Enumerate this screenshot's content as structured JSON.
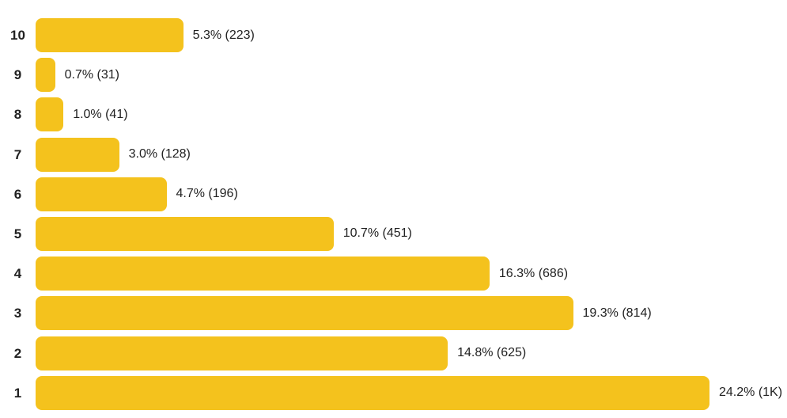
{
  "chart_data": {
    "type": "bar",
    "orientation": "horizontal",
    "title": "",
    "xlabel": "",
    "ylabel": "",
    "categories": [
      "10",
      "9",
      "8",
      "7",
      "6",
      "5",
      "4",
      "3",
      "2",
      "1"
    ],
    "values": [
      5.3,
      0.7,
      1.0,
      3.0,
      4.7,
      10.7,
      16.3,
      19.3,
      14.8,
      24.2
    ],
    "counts": [
      "223",
      "31",
      "41",
      "128",
      "196",
      "451",
      "686",
      "814",
      "625",
      "1K"
    ],
    "value_labels": [
      "5.3% (223)",
      "0.7% (31)",
      "1.0% (41)",
      "3.0% (128)",
      "4.7% (196)",
      "10.7% (451)",
      "16.3% (686)",
      "19.3% (814)",
      "14.8% (625)",
      "24.2% (1K)"
    ],
    "unit": "percent",
    "xlim": [
      0,
      24.2
    ],
    "grid": false,
    "legend": false,
    "bar_color": "#F4C21D",
    "label_color": "#212121",
    "background_color": "#FFFFFF"
  }
}
